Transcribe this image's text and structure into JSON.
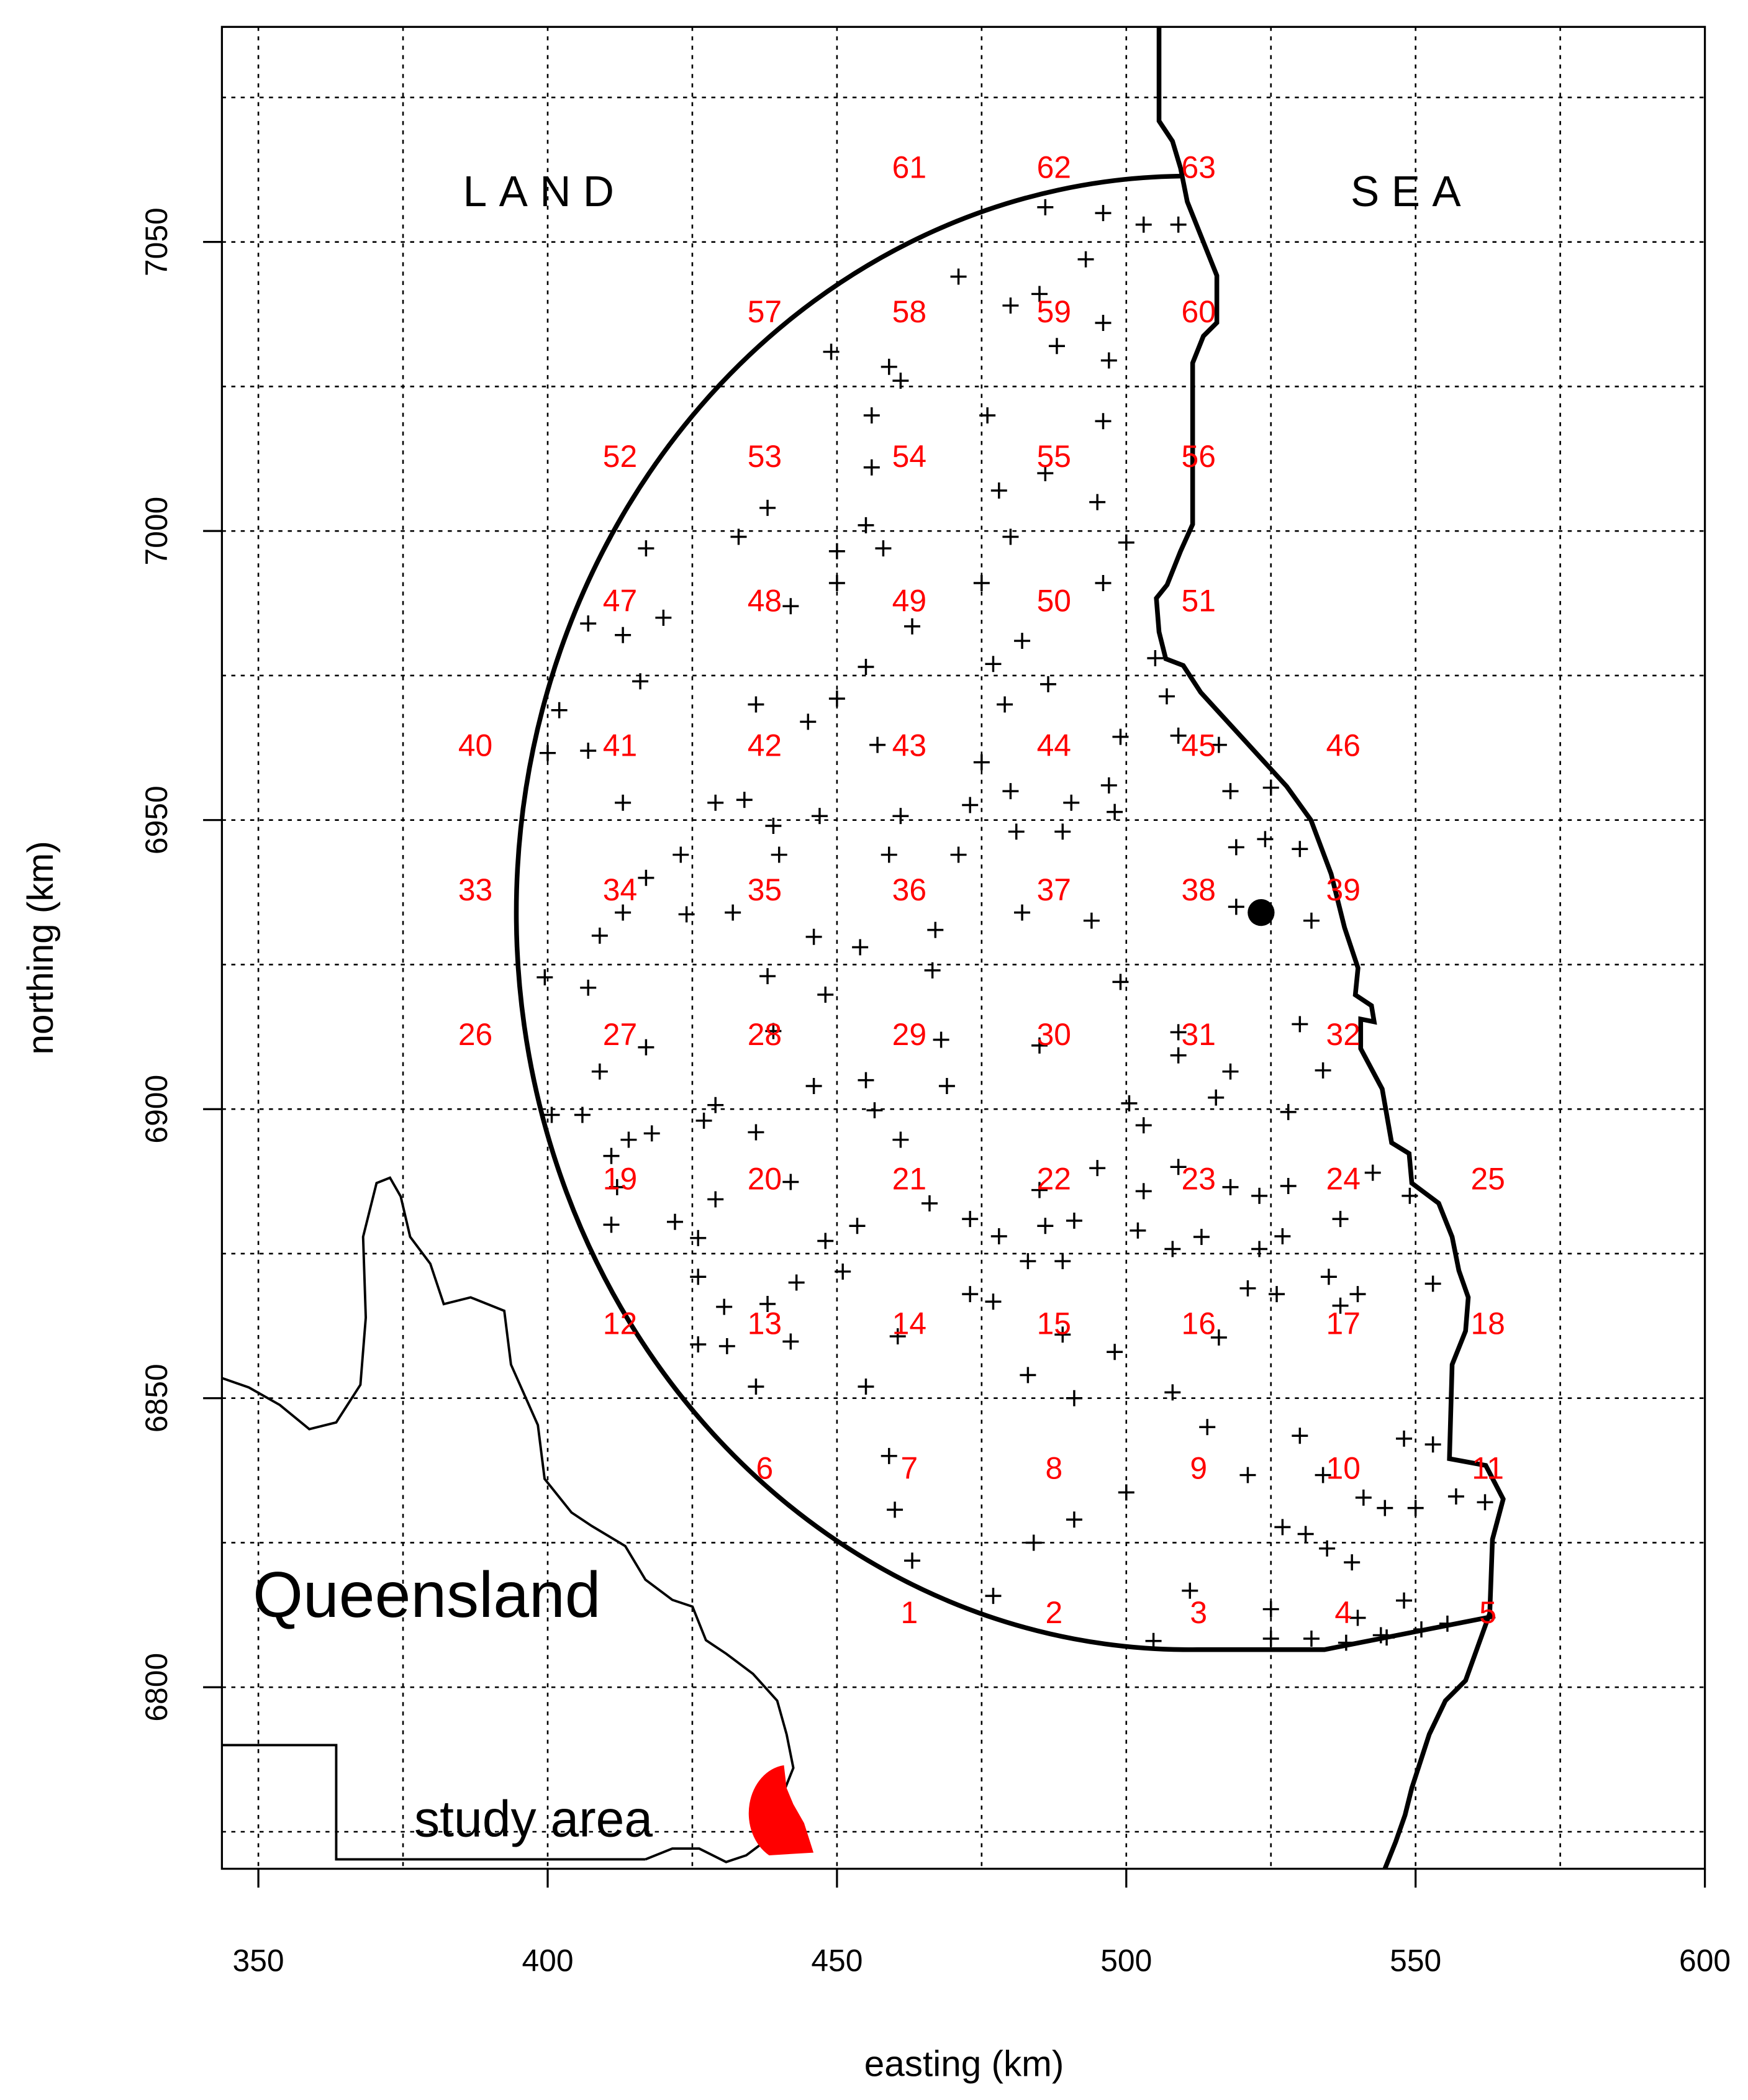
{
  "chart_data": {
    "type": "scatter",
    "xlabel": "easting (km)",
    "ylabel": "northing (km)",
    "xlim": [
      343.7,
      600
    ],
    "ylim": [
      6768.6,
      7087.2
    ],
    "xticks": [
      350,
      400,
      450,
      500,
      550,
      600
    ],
    "yticks": [
      6800,
      6850,
      6900,
      6950,
      7000,
      7050
    ],
    "xgrid": [
      350,
      375,
      400,
      425,
      450,
      475,
      500,
      525,
      550,
      575,
      600
    ],
    "ygrid": [
      6775,
      6800,
      6825,
      6850,
      6875,
      6900,
      6925,
      6950,
      6975,
      7000,
      7025,
      7050,
      7075
    ],
    "grid": true,
    "color": "#000000",
    "cell_color": "#ff0000",
    "annotations": {
      "land": "LAND",
      "sea": "SEA",
      "region": "Queensland",
      "study_area": "study area"
    },
    "station": {
      "x": 523.3,
      "y": 6934
    },
    "cells": [
      {
        "y": 6812.5,
        "x": [
          462.5,
          487.5,
          512.5,
          537.5,
          562.5
        ],
        "labels": [
          "1",
          "2",
          "3",
          "4",
          "5"
        ]
      },
      {
        "y": 6837.5,
        "x": [
          437.5,
          462.5,
          487.5,
          512.5,
          537.5,
          562.5
        ],
        "labels": [
          "6",
          "7",
          "8",
          "9",
          "10",
          "11"
        ]
      },
      {
        "y": 6862.5,
        "x": [
          412.5,
          437.5,
          462.5,
          487.5,
          512.5,
          537.5,
          562.5
        ],
        "labels": [
          "12",
          "13",
          "14",
          "15",
          "16",
          "17",
          "18"
        ]
      },
      {
        "y": 6887.5,
        "x": [
          412.5,
          437.5,
          462.5,
          487.5,
          512.5,
          537.5,
          562.5
        ],
        "labels": [
          "19",
          "20",
          "21",
          "22",
          "23",
          "24",
          "25"
        ]
      },
      {
        "y": 6912.5,
        "x": [
          387.5,
          412.5,
          437.5,
          462.5,
          487.5,
          512.5,
          537.5
        ],
        "labels": [
          "26",
          "27",
          "28",
          "29",
          "30",
          "31",
          "32"
        ]
      },
      {
        "y": 6937.5,
        "x": [
          387.5,
          412.5,
          437.5,
          462.5,
          487.5,
          512.5,
          537.5
        ],
        "labels": [
          "33",
          "34",
          "35",
          "36",
          "37",
          "38",
          "39"
        ]
      },
      {
        "y": 6962.5,
        "x": [
          387.5,
          412.5,
          437.5,
          462.5,
          487.5,
          512.5,
          537.5
        ],
        "labels": [
          "40",
          "41",
          "42",
          "43",
          "44",
          "45",
          "46"
        ]
      },
      {
        "y": 6987.5,
        "x": [
          412.5,
          437.5,
          462.5,
          487.5,
          512.5
        ],
        "labels": [
          "47",
          "48",
          "49",
          "50",
          "51"
        ]
      },
      {
        "y": 7012.5,
        "x": [
          412.5,
          437.5,
          462.5,
          487.5,
          512.5
        ],
        "labels": [
          "52",
          "53",
          "54",
          "55",
          "56"
        ]
      },
      {
        "y": 7037.5,
        "x": [
          437.5,
          462.5,
          487.5,
          512.5
        ],
        "labels": [
          "57",
          "58",
          "59",
          "60"
        ]
      },
      {
        "y": 7062.5,
        "x": [
          462.5,
          487.5,
          512.5
        ],
        "labels": [
          "61",
          "62",
          "63"
        ]
      }
    ],
    "x": [
      486,
      496,
      503,
      509,
      493,
      471,
      480,
      485,
      496,
      488,
      497,
      449,
      459,
      461,
      456,
      476,
      496,
      456,
      486,
      478,
      495,
      438,
      433,
      455,
      480,
      458,
      450,
      500,
      417,
      475,
      450,
      496,
      442,
      420,
      463,
      482,
      407,
      413,
      455,
      477,
      505,
      416,
      450,
      436,
      445,
      479,
      486.5,
      507,
      402,
      457,
      475,
      499,
      509,
      516,
      407,
      400,
      480,
      490.5,
      497,
      498,
      525,
      518,
      413,
      429,
      434,
      439,
      447,
      461,
      473,
      481,
      489,
      524,
      530,
      423,
      417,
      440,
      459,
      471,
      519,
      424,
      432,
      413,
      446,
      454,
      467,
      482,
      494,
      519,
      532,
      409,
      399.5,
      407,
      438,
      466.5,
      499,
      448,
      439,
      468,
      485,
      509,
      530,
      417,
      409,
      509,
      518,
      534,
      446,
      455,
      469,
      429,
      456.5,
      500.5,
      503,
      515.5,
      528,
      400.7,
      406,
      418,
      414,
      427,
      436,
      461,
      411,
      412,
      442,
      429,
      466,
      485,
      495,
      503,
      509,
      518,
      523,
      528,
      537,
      542.6,
      549,
      411,
      422,
      426,
      448,
      453.5,
      473,
      486,
      491,
      502,
      513,
      527,
      451,
      478,
      483,
      489,
      508,
      523,
      535,
      426,
      443,
      473,
      477,
      521,
      526,
      540,
      553,
      430.5,
      438,
      460.5,
      516,
      537,
      426,
      431,
      442,
      483,
      489,
      498,
      436,
      455,
      508,
      491,
      514,
      530,
      548,
      553,
      459,
      500,
      521,
      534,
      541,
      544.7,
      550,
      557,
      562,
      460,
      527,
      531,
      491,
      484,
      534.7,
      539,
      463,
      477,
      511,
      525,
      548,
      540,
      544,
      551,
      555.5,
      504.7,
      525,
      532,
      538,
      545
    ],
    "y": [
      7056,
      7055,
      7053,
      7053,
      7047,
      7044,
      7039,
      7041,
      7036,
      7032,
      7029.5,
      7031,
      7028.4,
      7026,
      7020,
      7020,
      7019,
      7011,
      7010,
      7007,
      7005,
      7004,
      6999,
      7001,
      6999,
      6997,
      6996.5,
      6998,
      6997,
      6991,
      6991,
      6991,
      6987,
      6985,
      6983.5,
      6981,
      6984,
      6982,
      6976.5,
      6977,
      6978,
      6974,
      6971,
      6970,
      6967,
      6970,
      6973.5,
      6971.4,
      6969,
      6963,
      6960,
      6964.4,
      6964.6,
      6963,
      6962,
      6961.6,
      6955,
      6953,
      6956,
      6951.4,
      6955.6,
      6955,
      6953,
      6953,
      6953.5,
      6949,
      6950.7,
      6950.7,
      6952.6,
      6948,
      6948,
      6946.7,
      6945,
      6944,
      6940,
      6944,
      6944,
      6944,
      6945.3,
      6933.7,
      6934,
      6934,
      6929.8,
      6928,
      6931,
      6934,
      6932.6,
      6935,
      6932.6,
      6930,
      6922.8,
      6921,
      6923,
      6924,
      6922,
      6919.8,
      6913.5,
      6912,
      6911,
      6913.3,
      6914.7,
      6910.7,
      6906.5,
      6909.3,
      6906.5,
      6906.7,
      6904,
      6905,
      6904,
      6900.7,
      6899.8,
      6901,
      6897.2,
      6902,
      6899.5,
      6899,
      6899,
      6895.8,
      6894.7,
      6898,
      6896,
      6894.7,
      6891.9,
      6886.5,
      6887.4,
      6884.4,
      6883.7,
      6886,
      6889.8,
      6885.8,
      6890,
      6886.5,
      6885,
      6886.7,
      6881,
      6889,
      6885,
      6880,
      6880.5,
      6877.7,
      6877.2,
      6879.8,
      6881,
      6879.8,
      6880.7,
      6879,
      6877.9,
      6878,
      6871.9,
      6878,
      6873.7,
      6873.7,
      6875.8,
      6875.8,
      6871,
      6871,
      6870,
      6868,
      6866.7,
      6869,
      6868,
      6868,
      6869.8,
      6865.8,
      6866.3,
      6860.7,
      6860.5,
      6866,
      6859.3,
      6859,
      6859.8,
      6854,
      6861,
      6858,
      6852,
      6852,
      6851,
      6850,
      6845,
      6843.5,
      6843,
      6842,
      6840,
      6833.7,
      6836.7,
      6836.7,
      6832.8,
      6831,
      6831,
      6833,
      6832,
      6830.7,
      6827.7,
      6826.5,
      6829,
      6825,
      6824,
      6821.6,
      6821.9,
      6815.8,
      6816.7,
      6813.5,
      6815,
      6812,
      6809,
      6810,
      6811,
      6808,
      6808.4,
      6808.4,
      6807.7,
      6808.6
    ]
  }
}
